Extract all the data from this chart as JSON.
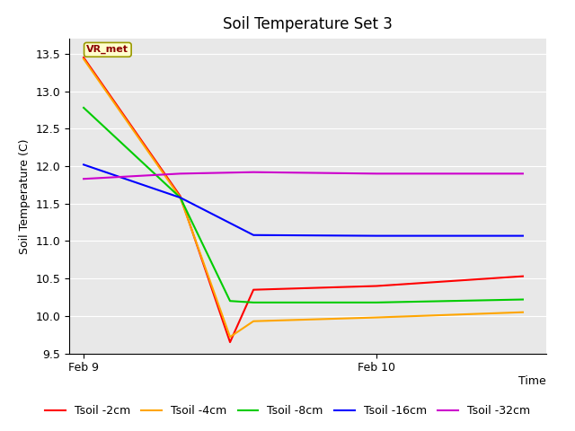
{
  "title": "Soil Temperature Set 3",
  "xlabel": "Time",
  "ylabel": "Soil Temperature (C)",
  "ylim": [
    9.5,
    13.7
  ],
  "plot_bg_color": "#e8e8e8",
  "fig_bg_color": "#ffffff",
  "annotation_text": "VR_met",
  "series": {
    "Tsoil -2cm": {
      "color": "#ff0000",
      "x": [
        0,
        0.33,
        0.5,
        0.58,
        1.0,
        1.5
      ],
      "y": [
        13.45,
        11.6,
        9.65,
        10.35,
        10.4,
        10.53
      ]
    },
    "Tsoil -4cm": {
      "color": "#ffa500",
      "x": [
        0,
        0.33,
        0.5,
        0.58,
        1.0,
        1.5
      ],
      "y": [
        13.43,
        11.58,
        9.72,
        9.93,
        9.98,
        10.05
      ]
    },
    "Tsoil -8cm": {
      "color": "#00cc00",
      "x": [
        0,
        0.33,
        0.5,
        0.58,
        1.0,
        1.5
      ],
      "y": [
        12.78,
        11.58,
        10.2,
        10.18,
        10.18,
        10.22
      ]
    },
    "Tsoil -16cm": {
      "color": "#0000ff",
      "x": [
        0,
        0.33,
        0.58,
        1.0,
        1.5
      ],
      "y": [
        12.02,
        11.58,
        11.08,
        11.07,
        11.07
      ]
    },
    "Tsoil -32cm": {
      "color": "#cc00cc",
      "x": [
        0,
        0.33,
        0.58,
        1.0,
        1.5
      ],
      "y": [
        11.83,
        11.9,
        11.92,
        11.9,
        11.9
      ]
    }
  },
  "xtick_positions": [
    0.0,
    1.0
  ],
  "xtick_labels": [
    "Feb 9",
    "Feb 10"
  ],
  "xlim": [
    -0.05,
    1.58
  ],
  "title_fontsize": 12,
  "axis_label_fontsize": 9,
  "tick_fontsize": 9,
  "legend_fontsize": 9
}
